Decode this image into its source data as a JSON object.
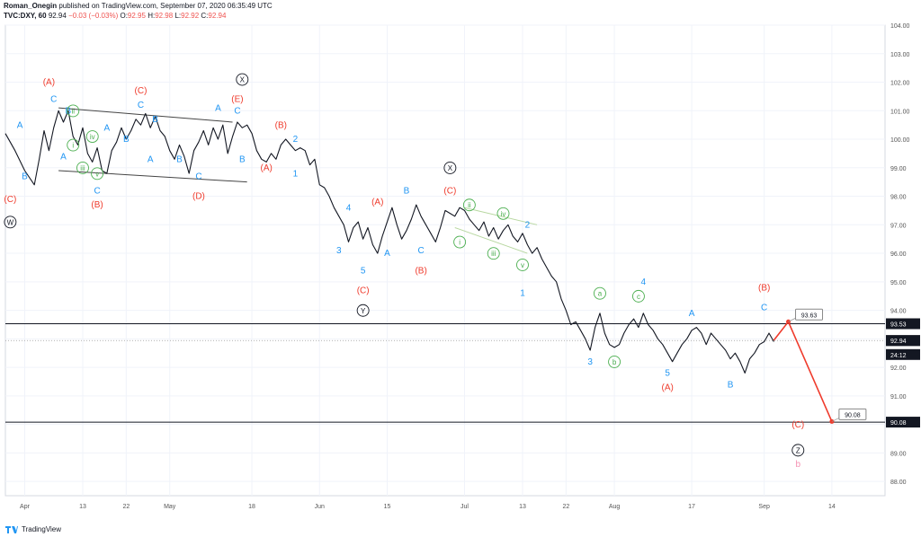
{
  "header": {
    "author": "Roman_Onegin",
    "published": "published on TradingView.com, September 07, 2020 06:35:49 UTC",
    "symbol": "TVC:DXY, 60",
    "last": "92.94",
    "change": "−0.03 (−0.03%)",
    "o_label": "O:",
    "o_value": "92.95",
    "h_label": "H:",
    "h_value": "92.98",
    "l_label": "L:",
    "l_value": "92.92",
    "c_label": "C:",
    "c_value": "92.94"
  },
  "footer": {
    "brand": "TradingView"
  },
  "colors": {
    "red": "#ef3b2c",
    "blue": "#2196f3",
    "green": "#4caf50",
    "black": "#131722",
    "pink": "#f48fb1",
    "grid": "#f0f3fa",
    "lightgreen": "#b7d7a0"
  },
  "chart_data": {
    "type": "line",
    "ylim": [
      87.5,
      104.0
    ],
    "y_ticks": [
      "104.00",
      "103.00",
      "102.00",
      "101.00",
      "100.00",
      "99.00",
      "98.00",
      "97.00",
      "96.00",
      "95.00",
      "94.00",
      "93.00",
      "92.00",
      "91.00",
      "90.00",
      "89.00",
      "88.00"
    ],
    "x_ticks": [
      "Apr",
      "13",
      "22",
      "May",
      "18",
      "Jun",
      "15",
      "Jul",
      "13",
      "22",
      "Aug",
      "17",
      "Sep",
      "14"
    ],
    "x_tick_days": [
      0,
      12,
      21,
      30,
      47,
      61,
      75,
      91,
      103,
      112,
      122,
      138,
      153,
      167
    ],
    "x_range_days": [
      -4,
      178
    ],
    "price_path": [
      [
        -4,
        100.2
      ],
      [
        -2,
        99.6
      ],
      [
        0,
        98.9
      ],
      [
        2,
        98.4
      ],
      [
        3,
        99.3
      ],
      [
        4,
        100.3
      ],
      [
        5,
        99.6
      ],
      [
        6,
        100.4
      ],
      [
        7,
        101.0
      ],
      [
        8,
        100.6
      ],
      [
        9,
        101.0
      ],
      [
        10,
        100.1
      ],
      [
        11,
        99.8
      ],
      [
        12,
        100.4
      ],
      [
        13,
        99.5
      ],
      [
        14,
        99.2
      ],
      [
        15,
        99.7
      ],
      [
        16,
        98.9
      ],
      [
        17,
        98.8
      ],
      [
        18,
        99.6
      ],
      [
        19,
        99.9
      ],
      [
        20,
        100.4
      ],
      [
        21,
        100.0
      ],
      [
        22,
        100.3
      ],
      [
        23,
        100.7
      ],
      [
        24,
        100.5
      ],
      [
        25,
        100.9
      ],
      [
        26,
        100.4
      ],
      [
        27,
        100.8
      ],
      [
        28,
        100.3
      ],
      [
        29,
        100.1
      ],
      [
        30,
        99.6
      ],
      [
        31,
        99.3
      ],
      [
        32,
        99.8
      ],
      [
        33,
        99.4
      ],
      [
        34,
        98.8
      ],
      [
        35,
        99.6
      ],
      [
        36,
        99.9
      ],
      [
        37,
        100.3
      ],
      [
        38,
        99.8
      ],
      [
        39,
        100.4
      ],
      [
        40,
        100.0
      ],
      [
        41,
        100.5
      ],
      [
        42,
        99.5
      ],
      [
        43,
        100.1
      ],
      [
        44,
        100.6
      ],
      [
        45,
        100.4
      ],
      [
        46,
        100.5
      ],
      [
        47,
        100.2
      ],
      [
        48,
        99.6
      ],
      [
        49,
        99.3
      ],
      [
        50,
        99.2
      ],
      [
        51,
        99.5
      ],
      [
        52,
        99.3
      ],
      [
        53,
        99.8
      ],
      [
        54,
        100.0
      ],
      [
        55,
        99.8
      ],
      [
        56,
        99.6
      ],
      [
        57,
        99.7
      ],
      [
        58,
        99.6
      ],
      [
        59,
        99.1
      ],
      [
        60,
        99.3
      ],
      [
        61,
        98.4
      ],
      [
        62,
        98.3
      ],
      [
        63,
        98.0
      ],
      [
        64,
        97.6
      ],
      [
        65,
        97.3
      ],
      [
        66,
        97.0
      ],
      [
        67,
        96.4
      ],
      [
        68,
        96.9
      ],
      [
        69,
        97.1
      ],
      [
        70,
        96.5
      ],
      [
        71,
        96.9
      ],
      [
        72,
        96.3
      ],
      [
        73,
        96.0
      ],
      [
        74,
        96.6
      ],
      [
        75,
        97.1
      ],
      [
        76,
        97.6
      ],
      [
        77,
        97.0
      ],
      [
        78,
        96.5
      ],
      [
        79,
        96.8
      ],
      [
        80,
        97.2
      ],
      [
        81,
        97.7
      ],
      [
        82,
        97.3
      ],
      [
        83,
        97.0
      ],
      [
        84,
        96.7
      ],
      [
        85,
        96.4
      ],
      [
        86,
        96.9
      ],
      [
        87,
        97.5
      ],
      [
        88,
        97.4
      ],
      [
        89,
        97.3
      ],
      [
        90,
        97.6
      ],
      [
        91,
        97.5
      ],
      [
        92,
        97.2
      ],
      [
        93,
        97.0
      ],
      [
        94,
        96.8
      ],
      [
        95,
        97.1
      ],
      [
        96,
        96.6
      ],
      [
        97,
        96.9
      ],
      [
        98,
        96.5
      ],
      [
        99,
        96.8
      ],
      [
        100,
        97.0
      ],
      [
        101,
        96.6
      ],
      [
        102,
        96.4
      ],
      [
        103,
        96.7
      ],
      [
        104,
        96.3
      ],
      [
        105,
        96.0
      ],
      [
        106,
        96.2
      ],
      [
        107,
        95.8
      ],
      [
        108,
        95.5
      ],
      [
        109,
        95.2
      ],
      [
        110,
        95.0
      ],
      [
        111,
        94.4
      ],
      [
        112,
        94.0
      ],
      [
        113,
        93.5
      ],
      [
        114,
        93.6
      ],
      [
        115,
        93.3
      ],
      [
        116,
        93.0
      ],
      [
        117,
        92.6
      ],
      [
        118,
        93.4
      ],
      [
        119,
        93.9
      ],
      [
        120,
        93.2
      ],
      [
        121,
        92.8
      ],
      [
        122,
        92.7
      ],
      [
        123,
        92.8
      ],
      [
        124,
        93.2
      ],
      [
        125,
        93.5
      ],
      [
        126,
        93.7
      ],
      [
        127,
        93.4
      ],
      [
        128,
        93.9
      ],
      [
        129,
        93.5
      ],
      [
        130,
        93.3
      ],
      [
        131,
        93.0
      ],
      [
        132,
        92.8
      ],
      [
        133,
        92.5
      ],
      [
        134,
        92.2
      ],
      [
        135,
        92.5
      ],
      [
        136,
        92.8
      ],
      [
        137,
        93.0
      ],
      [
        138,
        93.3
      ],
      [
        139,
        93.4
      ],
      [
        140,
        93.2
      ],
      [
        141,
        92.8
      ],
      [
        142,
        93.2
      ],
      [
        143,
        93.0
      ],
      [
        144,
        92.8
      ],
      [
        145,
        92.6
      ],
      [
        146,
        92.3
      ],
      [
        147,
        92.5
      ],
      [
        148,
        92.2
      ],
      [
        149,
        91.8
      ],
      [
        150,
        92.3
      ],
      [
        151,
        92.5
      ],
      [
        152,
        92.8
      ],
      [
        153,
        92.9
      ],
      [
        154,
        93.2
      ],
      [
        155,
        92.9
      ]
    ],
    "horizontal_levels": [
      {
        "value": 93.53,
        "label": "93.53",
        "style": "solid"
      },
      {
        "value": 90.08,
        "label": "90.08",
        "style": "solid"
      },
      {
        "value": 92.94,
        "label": "92.94",
        "style": "dotted"
      }
    ],
    "price_tags": [
      {
        "value": 92.94,
        "label": "92.94"
      },
      {
        "value": 92.45,
        "label": "24:12"
      }
    ],
    "channel_lines": [
      {
        "from": [
          7,
          101.1
        ],
        "to": [
          43,
          100.6
        ],
        "color": "black"
      },
      {
        "from": [
          7,
          98.9
        ],
        "to": [
          46,
          98.5
        ],
        "color": "black"
      },
      {
        "from": [
          91,
          97.6
        ],
        "to": [
          106,
          97.0
        ],
        "color": "green"
      },
      {
        "from": [
          89,
          96.9
        ],
        "to": [
          104,
          96.0
        ],
        "color": "green"
      }
    ],
    "projection": {
      "points": [
        [
          155,
          92.95
        ],
        [
          158,
          93.6
        ],
        [
          167,
          90.1
        ]
      ],
      "color": "red",
      "callouts": [
        {
          "at": [
            158,
            93.6
          ],
          "label": "93.63"
        },
        {
          "at": [
            167,
            90.1
          ],
          "label": "90.08"
        }
      ]
    },
    "labels": [
      {
        "x": -3,
        "y": 97.8,
        "text": "(C)",
        "color": "red"
      },
      {
        "x": -3,
        "y": 97.0,
        "text": "W",
        "color": "black",
        "circle": true
      },
      {
        "x": 0,
        "y": 98.6,
        "text": "B",
        "color": "blue"
      },
      {
        "x": -1,
        "y": 100.4,
        "text": "A",
        "color": "blue"
      },
      {
        "x": 5,
        "y": 101.9,
        "text": "(A)",
        "color": "red"
      },
      {
        "x": 6,
        "y": 101.3,
        "text": "C",
        "color": "blue"
      },
      {
        "x": 9,
        "y": 100.9,
        "text": "B",
        "color": "blue"
      },
      {
        "x": 10,
        "y": 100.9,
        "text": "ii",
        "color": "green",
        "circle": true
      },
      {
        "x": 10,
        "y": 99.7,
        "text": "i",
        "color": "green",
        "circle": true
      },
      {
        "x": 8,
        "y": 99.3,
        "text": "A",
        "color": "blue"
      },
      {
        "x": 14,
        "y": 100.0,
        "text": "iv",
        "color": "green",
        "circle": true
      },
      {
        "x": 12,
        "y": 98.9,
        "text": "iii",
        "color": "green",
        "circle": true
      },
      {
        "x": 15,
        "y": 98.7,
        "text": "v",
        "color": "green",
        "circle": true
      },
      {
        "x": 15,
        "y": 98.1,
        "text": "C",
        "color": "blue"
      },
      {
        "x": 15,
        "y": 97.6,
        "text": "(B)",
        "color": "red"
      },
      {
        "x": 17,
        "y": 100.3,
        "text": "A",
        "color": "blue"
      },
      {
        "x": 21,
        "y": 99.9,
        "text": "B",
        "color": "blue"
      },
      {
        "x": 24,
        "y": 101.6,
        "text": "(C)",
        "color": "red"
      },
      {
        "x": 24,
        "y": 101.1,
        "text": "C",
        "color": "blue"
      },
      {
        "x": 27,
        "y": 100.6,
        "text": "B",
        "color": "blue"
      },
      {
        "x": 26,
        "y": 99.2,
        "text": "A",
        "color": "blue"
      },
      {
        "x": 32,
        "y": 99.2,
        "text": "B",
        "color": "blue"
      },
      {
        "x": 36,
        "y": 98.6,
        "text": "C",
        "color": "blue"
      },
      {
        "x": 36,
        "y": 97.9,
        "text": "(D)",
        "color": "red"
      },
      {
        "x": 40,
        "y": 101.0,
        "text": "A",
        "color": "blue"
      },
      {
        "x": 45,
        "y": 102.0,
        "text": "X",
        "color": "black",
        "circle": true
      },
      {
        "x": 44,
        "y": 101.3,
        "text": "(E)",
        "color": "red"
      },
      {
        "x": 44,
        "y": 100.9,
        "text": "C",
        "color": "blue"
      },
      {
        "x": 45,
        "y": 99.2,
        "text": "B",
        "color": "blue"
      },
      {
        "x": 53,
        "y": 100.4,
        "text": "(B)",
        "color": "red"
      },
      {
        "x": 56,
        "y": 99.9,
        "text": "2",
        "color": "blue"
      },
      {
        "x": 50,
        "y": 98.9,
        "text": "(A)",
        "color": "red"
      },
      {
        "x": 56,
        "y": 98.7,
        "text": "1",
        "color": "blue"
      },
      {
        "x": 67,
        "y": 97.5,
        "text": "4",
        "color": "blue"
      },
      {
        "x": 65,
        "y": 96.0,
        "text": "3",
        "color": "blue"
      },
      {
        "x": 70,
        "y": 95.3,
        "text": "5",
        "color": "blue"
      },
      {
        "x": 70,
        "y": 94.6,
        "text": "(C)",
        "color": "red"
      },
      {
        "x": 70,
        "y": 93.9,
        "text": "Y",
        "color": "black",
        "circle": true
      },
      {
        "x": 73,
        "y": 97.7,
        "text": "(A)",
        "color": "red"
      },
      {
        "x": 75,
        "y": 95.9,
        "text": "A",
        "color": "blue"
      },
      {
        "x": 79,
        "y": 98.1,
        "text": "B",
        "color": "blue"
      },
      {
        "x": 82,
        "y": 96.0,
        "text": "C",
        "color": "blue"
      },
      {
        "x": 82,
        "y": 95.3,
        "text": "(B)",
        "color": "red"
      },
      {
        "x": 88,
        "y": 98.9,
        "text": "X",
        "color": "black",
        "circle": true
      },
      {
        "x": 88,
        "y": 98.1,
        "text": "(C)",
        "color": "red"
      },
      {
        "x": 92,
        "y": 97.6,
        "text": "ii",
        "color": "green",
        "circle": true
      },
      {
        "x": 90,
        "y": 96.3,
        "text": "i",
        "color": "green",
        "circle": true
      },
      {
        "x": 99,
        "y": 97.3,
        "text": "iv",
        "color": "green",
        "circle": true
      },
      {
        "x": 97,
        "y": 95.9,
        "text": "iii",
        "color": "green",
        "circle": true
      },
      {
        "x": 104,
        "y": 96.9,
        "text": "2",
        "color": "blue"
      },
      {
        "x": 103,
        "y": 95.5,
        "text": "v",
        "color": "green",
        "circle": true
      },
      {
        "x": 103,
        "y": 94.5,
        "text": "1",
        "color": "blue"
      },
      {
        "x": 119,
        "y": 94.5,
        "text": "a",
        "color": "green",
        "circle": true
      },
      {
        "x": 117,
        "y": 92.1,
        "text": "3",
        "color": "blue"
      },
      {
        "x": 122,
        "y": 92.1,
        "text": "b",
        "color": "green",
        "circle": true
      },
      {
        "x": 127,
        "y": 94.4,
        "text": "c",
        "color": "green",
        "circle": true
      },
      {
        "x": 128,
        "y": 94.9,
        "text": "4",
        "color": "blue"
      },
      {
        "x": 133,
        "y": 91.7,
        "text": "5",
        "color": "blue"
      },
      {
        "x": 133,
        "y": 91.2,
        "text": "(A)",
        "color": "red"
      },
      {
        "x": 138,
        "y": 93.8,
        "text": "A",
        "color": "blue"
      },
      {
        "x": 146,
        "y": 91.3,
        "text": "B",
        "color": "blue"
      },
      {
        "x": 153,
        "y": 94.7,
        "text": "(B)",
        "color": "red"
      },
      {
        "x": 153,
        "y": 94.0,
        "text": "C",
        "color": "blue"
      },
      {
        "x": 160,
        "y": 89.9,
        "text": "(C)",
        "color": "red"
      },
      {
        "x": 160,
        "y": 89.0,
        "text": "Z",
        "color": "black",
        "circle": true
      },
      {
        "x": 160,
        "y": 88.5,
        "text": "b",
        "color": "pink"
      }
    ]
  }
}
